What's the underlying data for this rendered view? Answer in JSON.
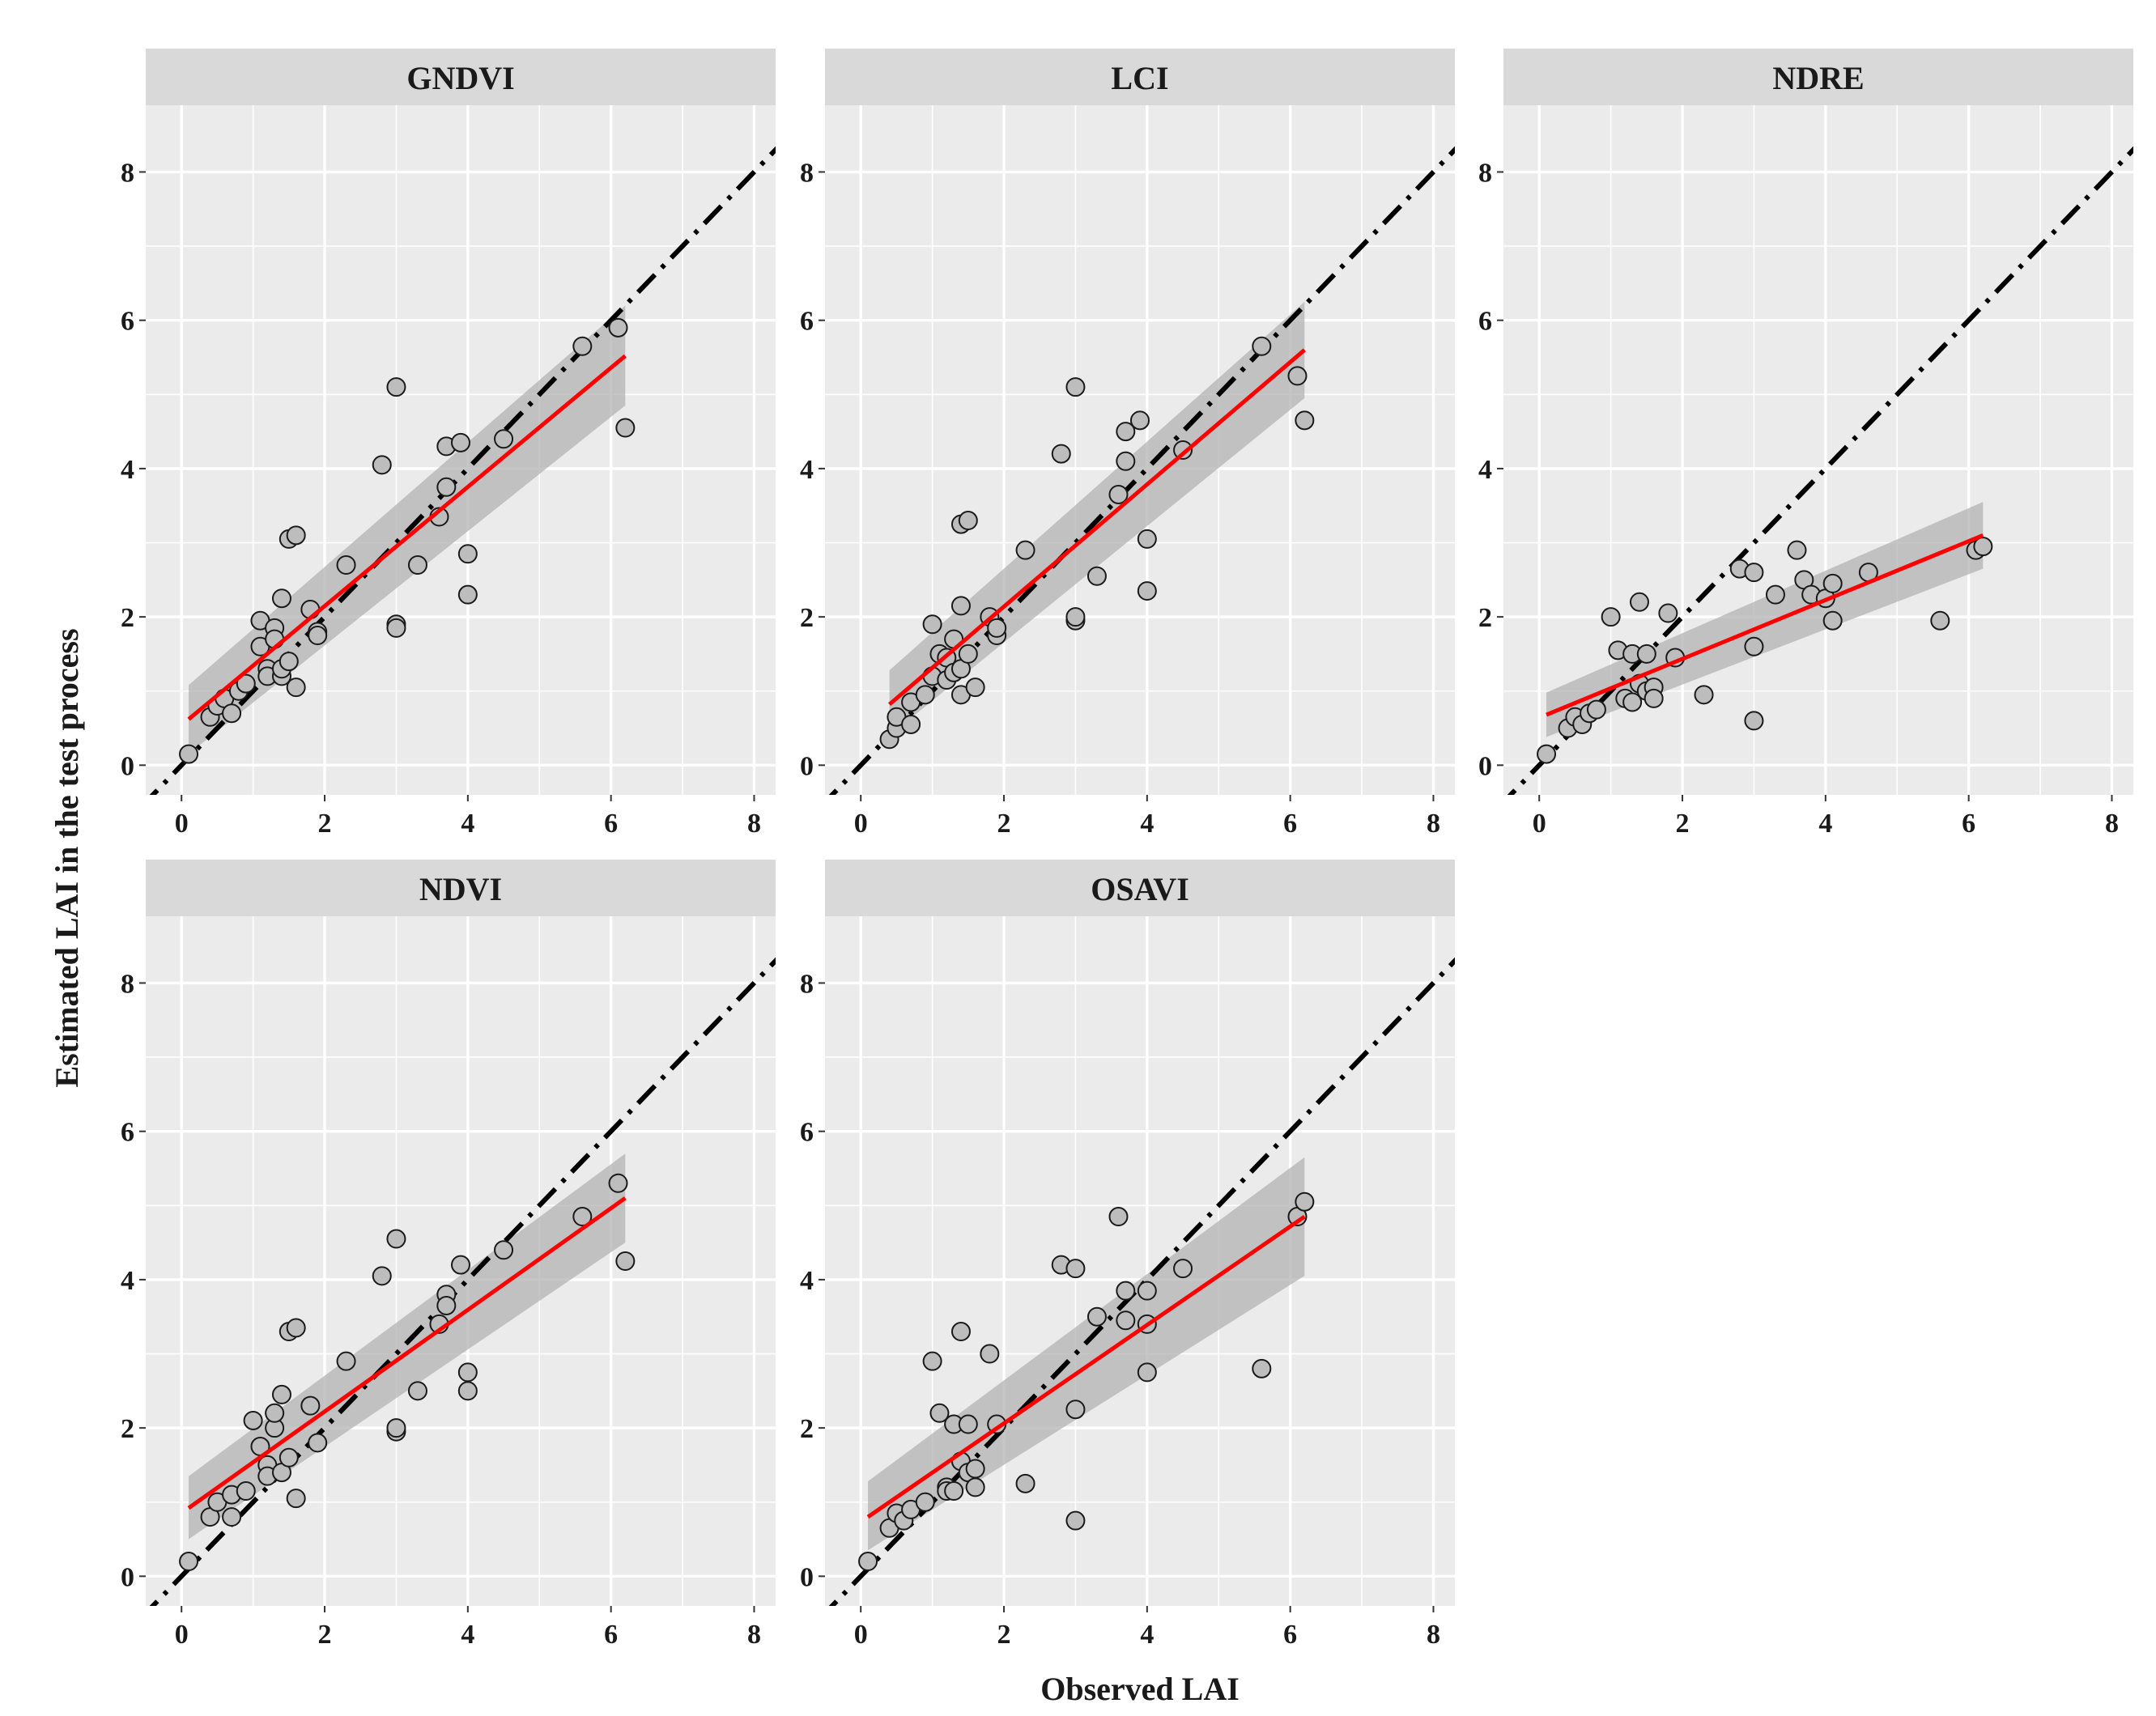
{
  "figure": {
    "xlabel": "Observed LAI",
    "ylabel": "Estimated LAI in the test process"
  },
  "colors": {
    "panel_bg": "#ebebeb",
    "strip_bg": "#d9d9d9",
    "grid": "#ffffff",
    "point_fill": "#bdbdbd",
    "point_stroke": "#1a1a1a",
    "fit_line": "#ff0000",
    "ci_band": "#b3b3b3",
    "identity_line": "#000000"
  },
  "chart_data": [
    {
      "type": "scatter",
      "title": "GNDVI",
      "xlim": [
        -0.5,
        8.3
      ],
      "ylim": [
        -0.4,
        8.9
      ],
      "xticks": [
        0,
        2,
        4,
        6,
        8
      ],
      "yticks": [
        0,
        2,
        4,
        6,
        8
      ],
      "identity_line": true,
      "fit": {
        "x": [
          0.1,
          6.2
        ],
        "y": [
          0.62,
          5.52
        ],
        "ci_lower": [
          0.15,
          4.85
        ],
        "ci_upper": [
          1.08,
          6.2
        ]
      },
      "points": [
        [
          0.1,
          0.15
        ],
        [
          0.4,
          0.65
        ],
        [
          0.5,
          0.8
        ],
        [
          0.6,
          0.9
        ],
        [
          0.7,
          0.7
        ],
        [
          0.8,
          1.0
        ],
        [
          0.9,
          1.1
        ],
        [
          1.1,
          1.95
        ],
        [
          1.1,
          1.6
        ],
        [
          1.2,
          1.3
        ],
        [
          1.2,
          1.2
        ],
        [
          1.3,
          1.85
        ],
        [
          1.3,
          1.7
        ],
        [
          1.4,
          1.2
        ],
        [
          1.4,
          1.3
        ],
        [
          1.4,
          2.25
        ],
        [
          1.5,
          3.05
        ],
        [
          1.5,
          1.4
        ],
        [
          1.6,
          3.1
        ],
        [
          1.6,
          1.05
        ],
        [
          1.8,
          2.1
        ],
        [
          1.9,
          1.8
        ],
        [
          1.9,
          1.75
        ],
        [
          2.3,
          2.7
        ],
        [
          2.8,
          4.05
        ],
        [
          3.0,
          5.1
        ],
        [
          3.0,
          1.9
        ],
        [
          3.0,
          1.85
        ],
        [
          3.3,
          2.7
        ],
        [
          3.6,
          3.35
        ],
        [
          3.7,
          3.75
        ],
        [
          3.7,
          4.3
        ],
        [
          3.9,
          4.35
        ],
        [
          4.0,
          2.85
        ],
        [
          4.0,
          2.3
        ],
        [
          4.5,
          4.4
        ],
        [
          5.6,
          5.65
        ],
        [
          6.1,
          5.9
        ],
        [
          6.2,
          4.55
        ]
      ]
    },
    {
      "type": "scatter",
      "title": "LCI",
      "xlim": [
        -0.5,
        8.3
      ],
      "ylim": [
        -0.4,
        8.9
      ],
      "xticks": [
        0,
        2,
        4,
        6,
        8
      ],
      "yticks": [
        0,
        2,
        4,
        6,
        8
      ],
      "identity_line": true,
      "fit": {
        "x": [
          0.4,
          6.2
        ],
        "y": [
          0.82,
          5.6
        ],
        "ci_lower": [
          0.4,
          4.95
        ],
        "ci_upper": [
          1.28,
          6.25
        ]
      },
      "points": [
        [
          0.4,
          0.35
        ],
        [
          0.5,
          0.5
        ],
        [
          0.5,
          0.65
        ],
        [
          0.7,
          0.55
        ],
        [
          0.7,
          0.85
        ],
        [
          0.9,
          0.95
        ],
        [
          1.0,
          1.2
        ],
        [
          1.0,
          1.9
        ],
        [
          1.1,
          1.5
        ],
        [
          1.2,
          1.45
        ],
        [
          1.2,
          1.15
        ],
        [
          1.3,
          1.7
        ],
        [
          1.3,
          1.25
        ],
        [
          1.4,
          1.3
        ],
        [
          1.4,
          0.95
        ],
        [
          1.4,
          2.15
        ],
        [
          1.4,
          3.25
        ],
        [
          1.5,
          3.3
        ],
        [
          1.5,
          1.5
        ],
        [
          1.6,
          1.05
        ],
        [
          1.8,
          2.0
        ],
        [
          1.9,
          1.75
        ],
        [
          1.9,
          1.85
        ],
        [
          2.3,
          2.9
        ],
        [
          2.8,
          4.2
        ],
        [
          3.0,
          5.1
        ],
        [
          3.0,
          1.95
        ],
        [
          3.0,
          2.0
        ],
        [
          3.3,
          2.55
        ],
        [
          3.6,
          3.65
        ],
        [
          3.7,
          4.5
        ],
        [
          3.7,
          4.1
        ],
        [
          3.9,
          4.65
        ],
        [
          4.0,
          3.05
        ],
        [
          4.0,
          2.35
        ],
        [
          4.5,
          4.25
        ],
        [
          5.6,
          5.65
        ],
        [
          6.1,
          5.25
        ],
        [
          6.2,
          4.65
        ]
      ]
    },
    {
      "type": "scatter",
      "title": "NDRE",
      "xlim": [
        -0.5,
        8.3
      ],
      "ylim": [
        -0.4,
        8.9
      ],
      "xticks": [
        0,
        2,
        4,
        6,
        8
      ],
      "yticks": [
        0,
        2,
        4,
        6,
        8
      ],
      "identity_line": true,
      "fit": {
        "x": [
          0.1,
          6.2
        ],
        "y": [
          0.68,
          3.1
        ],
        "ci_lower": [
          0.38,
          2.65
        ],
        "ci_upper": [
          0.98,
          3.55
        ]
      },
      "points": [
        [
          0.1,
          0.15
        ],
        [
          0.4,
          0.5
        ],
        [
          0.5,
          0.65
        ],
        [
          0.6,
          0.55
        ],
        [
          0.7,
          0.7
        ],
        [
          0.8,
          0.75
        ],
        [
          1.0,
          2.0
        ],
        [
          1.1,
          1.55
        ],
        [
          1.2,
          0.9
        ],
        [
          1.3,
          1.5
        ],
        [
          1.3,
          0.85
        ],
        [
          1.4,
          1.1
        ],
        [
          1.4,
          2.2
        ],
        [
          1.5,
          1.0
        ],
        [
          1.5,
          1.5
        ],
        [
          1.6,
          1.05
        ],
        [
          1.6,
          0.9
        ],
        [
          1.8,
          2.05
        ],
        [
          1.9,
          1.45
        ],
        [
          2.3,
          0.95
        ],
        [
          2.8,
          2.65
        ],
        [
          3.0,
          2.6
        ],
        [
          3.0,
          1.6
        ],
        [
          3.0,
          0.6
        ],
        [
          3.3,
          2.3
        ],
        [
          3.6,
          2.9
        ],
        [
          3.7,
          2.5
        ],
        [
          3.8,
          2.3
        ],
        [
          4.0,
          2.25
        ],
        [
          4.1,
          1.95
        ],
        [
          4.1,
          2.45
        ],
        [
          4.6,
          2.6
        ],
        [
          5.6,
          1.95
        ],
        [
          6.1,
          2.9
        ],
        [
          6.2,
          2.95
        ]
      ]
    },
    {
      "type": "scatter",
      "title": "NDVI",
      "xlim": [
        -0.5,
        8.3
      ],
      "ylim": [
        -0.4,
        8.9
      ],
      "xticks": [
        0,
        2,
        4,
        6,
        8
      ],
      "yticks": [
        0,
        2,
        4,
        6,
        8
      ],
      "identity_line": true,
      "fit": {
        "x": [
          0.1,
          6.2
        ],
        "y": [
          0.92,
          5.1
        ],
        "ci_lower": [
          0.5,
          4.5
        ],
        "ci_upper": [
          1.35,
          5.7
        ]
      },
      "points": [
        [
          0.1,
          0.2
        ],
        [
          0.4,
          0.8
        ],
        [
          0.5,
          1.0
        ],
        [
          0.7,
          1.1
        ],
        [
          0.7,
          0.8
        ],
        [
          0.9,
          1.15
        ],
        [
          1.0,
          2.1
        ],
        [
          1.1,
          1.75
        ],
        [
          1.2,
          1.5
        ],
        [
          1.2,
          1.35
        ],
        [
          1.3,
          2.0
        ],
        [
          1.3,
          2.2
        ],
        [
          1.4,
          1.4
        ],
        [
          1.4,
          2.45
        ],
        [
          1.5,
          3.3
        ],
        [
          1.5,
          1.6
        ],
        [
          1.6,
          3.35
        ],
        [
          1.6,
          1.05
        ],
        [
          1.8,
          2.3
        ],
        [
          1.9,
          1.8
        ],
        [
          2.3,
          2.9
        ],
        [
          2.8,
          4.05
        ],
        [
          3.0,
          4.55
        ],
        [
          3.0,
          1.95
        ],
        [
          3.0,
          2.0
        ],
        [
          3.3,
          2.5
        ],
        [
          3.6,
          3.4
        ],
        [
          3.7,
          3.8
        ],
        [
          3.7,
          3.65
        ],
        [
          3.9,
          4.2
        ],
        [
          4.0,
          2.75
        ],
        [
          4.0,
          2.5
        ],
        [
          4.5,
          4.4
        ],
        [
          5.6,
          4.85
        ],
        [
          6.1,
          5.3
        ],
        [
          6.2,
          4.25
        ]
      ]
    },
    {
      "type": "scatter",
      "title": "OSAVI",
      "xlim": [
        -0.5,
        8.3
      ],
      "ylim": [
        -0.4,
        8.9
      ],
      "xticks": [
        0,
        2,
        4,
        6,
        8
      ],
      "yticks": [
        0,
        2,
        4,
        6,
        8
      ],
      "identity_line": true,
      "fit": {
        "x": [
          0.1,
          6.2
        ],
        "y": [
          0.8,
          4.85
        ],
        "ci_lower": [
          0.35,
          4.05
        ],
        "ci_upper": [
          1.28,
          5.65
        ]
      },
      "points": [
        [
          0.1,
          0.2
        ],
        [
          0.4,
          0.65
        ],
        [
          0.5,
          0.85
        ],
        [
          0.6,
          0.75
        ],
        [
          0.7,
          0.9
        ],
        [
          0.9,
          1.0
        ],
        [
          1.0,
          2.9
        ],
        [
          1.1,
          2.2
        ],
        [
          1.2,
          1.2
        ],
        [
          1.2,
          1.15
        ],
        [
          1.3,
          2.05
        ],
        [
          1.3,
          1.15
        ],
        [
          1.4,
          1.55
        ],
        [
          1.4,
          3.3
        ],
        [
          1.5,
          1.4
        ],
        [
          1.5,
          2.05
        ],
        [
          1.6,
          1.45
        ],
        [
          1.6,
          1.2
        ],
        [
          1.8,
          3.0
        ],
        [
          1.9,
          2.05
        ],
        [
          2.3,
          1.25
        ],
        [
          2.8,
          4.2
        ],
        [
          3.0,
          4.15
        ],
        [
          3.0,
          2.25
        ],
        [
          3.0,
          0.75
        ],
        [
          3.3,
          3.5
        ],
        [
          3.6,
          4.85
        ],
        [
          3.7,
          3.85
        ],
        [
          3.7,
          3.45
        ],
        [
          4.0,
          3.4
        ],
        [
          4.0,
          3.85
        ],
        [
          4.0,
          2.75
        ],
        [
          4.5,
          4.15
        ],
        [
          5.6,
          2.8
        ],
        [
          6.1,
          4.85
        ],
        [
          6.2,
          5.05
        ]
      ]
    }
  ]
}
